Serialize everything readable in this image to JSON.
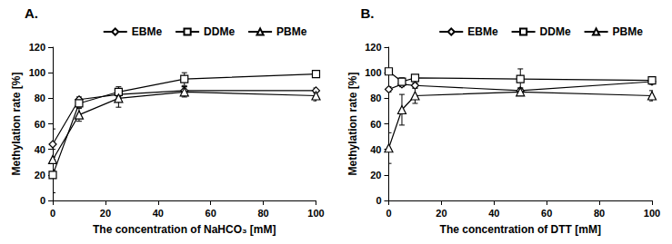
{
  "chart_data": [
    {
      "type": "line",
      "title": "A.",
      "x_label": "The concentration of NaHCO₃ [mM]",
      "y_label": "Methylation rate [%]",
      "x": [
        0,
        10,
        25,
        50,
        100
      ],
      "series": [
        {
          "name": "EBMe",
          "color": "#000000",
          "marker": "diamond",
          "values": [
            44,
            79,
            83,
            86,
            86
          ],
          "errors": [
            12,
            2,
            3,
            3,
            2
          ]
        },
        {
          "name": "DDMe",
          "color": "#000000",
          "marker": "square",
          "values": [
            20,
            76,
            85,
            95,
            99
          ],
          "errors": [
            14,
            3,
            4,
            5,
            1
          ]
        },
        {
          "name": "PBMe",
          "color": "#000000",
          "marker": "triangle",
          "values": [
            32,
            67,
            80,
            85,
            82
          ],
          "errors": [
            8,
            5,
            7,
            4,
            4
          ]
        }
      ],
      "xlim": [
        0,
        100
      ],
      "xticks": [
        0,
        20,
        40,
        60,
        80,
        100
      ],
      "ylim": [
        0,
        120
      ],
      "yticks": [
        0,
        20,
        40,
        60,
        80,
        100,
        120
      ],
      "grid": false,
      "legend": "top"
    },
    {
      "type": "line",
      "title": "B.",
      "x_label": "The concentration of DTT [mM]",
      "y_label": "Methylation rate [%]",
      "x": [
        0,
        5,
        10,
        50,
        100
      ],
      "series": [
        {
          "name": "EBMe",
          "color": "#000000",
          "marker": "diamond",
          "values": [
            87,
            91,
            90,
            86,
            93
          ],
          "errors": [
            2,
            2,
            2,
            2,
            2
          ]
        },
        {
          "name": "DDMe",
          "color": "#000000",
          "marker": "square",
          "values": [
            101,
            93,
            96,
            95,
            94
          ],
          "errors": [
            1,
            3,
            2,
            8,
            2
          ]
        },
        {
          "name": "PBMe",
          "color": "#000000",
          "marker": "triangle",
          "values": [
            41,
            71,
            82,
            85,
            82
          ],
          "errors": [
            12,
            12,
            6,
            3,
            4
          ]
        }
      ],
      "xlim": [
        0,
        100
      ],
      "xticks": [
        0,
        20,
        40,
        60,
        80,
        100
      ],
      "ylim": [
        0,
        120
      ],
      "yticks": [
        0,
        20,
        40,
        60,
        80,
        100,
        120
      ],
      "grid": false,
      "legend": "top"
    }
  ]
}
